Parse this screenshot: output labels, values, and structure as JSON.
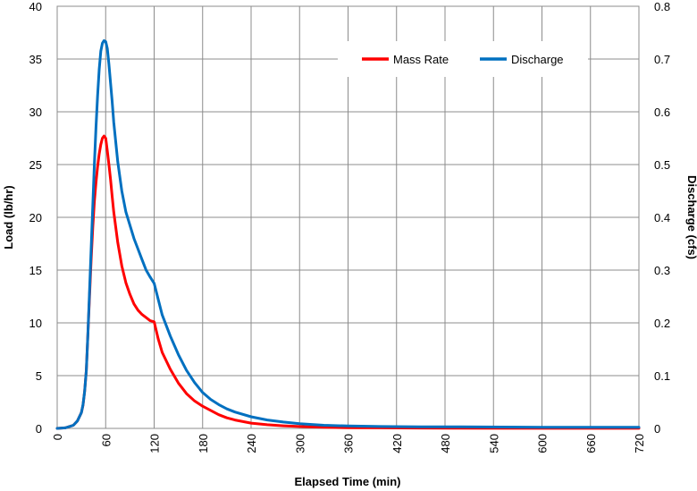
{
  "chart_data": {
    "type": "line",
    "xlabel": "Elapsed Time (min)",
    "ylabel": "Load (lb/hr)",
    "y2label": "Discharge (cfs)",
    "xlim": [
      0,
      720
    ],
    "ylim": [
      0,
      40
    ],
    "y2lim": [
      0,
      0.8
    ],
    "x_ticks": [
      "0",
      "60",
      "120",
      "180",
      "240",
      "300",
      "360",
      "420",
      "480",
      "540",
      "600",
      "660",
      "720"
    ],
    "y_ticks": [
      "0",
      "5",
      "10",
      "15",
      "20",
      "25",
      "30",
      "35",
      "40"
    ],
    "y2_ticks": [
      "0",
      "0.1",
      "0.2",
      "0.3",
      "0.4",
      "0.5",
      "0.6",
      "0.7",
      "0.8"
    ],
    "grid": true,
    "legend_position": "top-right",
    "colors": {
      "Mass Rate": "#ff0000",
      "Discharge": "#0070c0"
    },
    "series": [
      {
        "name": "Mass Rate",
        "axis": "left",
        "x": [
          0,
          10,
          20,
          25,
          30,
          32,
          34,
          36,
          38,
          40,
          42,
          44,
          46,
          48,
          50,
          52,
          54,
          56,
          58,
          60,
          62,
          64,
          66,
          68,
          70,
          75,
          80,
          85,
          90,
          95,
          100,
          105,
          110,
          115,
          120,
          125,
          130,
          140,
          150,
          160,
          170,
          180,
          190,
          200,
          210,
          220,
          240,
          260,
          280,
          300,
          330,
          360,
          400,
          450,
          500,
          600,
          720
        ],
        "y": [
          0.0,
          0.05,
          0.3,
          0.7,
          1.5,
          2.2,
          3.5,
          5.5,
          9.0,
          12.5,
          16.0,
          19.0,
          21.5,
          23.3,
          24.8,
          26.0,
          26.9,
          27.5,
          27.7,
          27.5,
          26.3,
          25.0,
          23.6,
          22.0,
          20.5,
          17.6,
          15.4,
          13.8,
          12.7,
          11.8,
          11.2,
          10.8,
          10.5,
          10.2,
          10.1,
          8.5,
          7.2,
          5.6,
          4.3,
          3.3,
          2.6,
          2.1,
          1.7,
          1.3,
          1.0,
          0.8,
          0.5,
          0.35,
          0.25,
          0.18,
          0.1,
          0.07,
          0.05,
          0.03,
          0.02,
          0.01,
          0.01
        ]
      },
      {
        "name": "Discharge",
        "axis": "right",
        "x": [
          0,
          10,
          20,
          25,
          30,
          32,
          34,
          36,
          38,
          40,
          42,
          44,
          46,
          48,
          50,
          52,
          54,
          56,
          58,
          60,
          62,
          64,
          66,
          68,
          70,
          75,
          80,
          85,
          90,
          95,
          100,
          105,
          110,
          115,
          120,
          125,
          130,
          140,
          150,
          160,
          170,
          180,
          190,
          200,
          210,
          220,
          240,
          260,
          280,
          300,
          330,
          360,
          400,
          450,
          500,
          600,
          720
        ],
        "y": [
          0.0,
          0.001,
          0.006,
          0.014,
          0.03,
          0.045,
          0.07,
          0.11,
          0.18,
          0.26,
          0.34,
          0.42,
          0.5,
          0.57,
          0.63,
          0.68,
          0.715,
          0.73,
          0.735,
          0.733,
          0.72,
          0.69,
          0.655,
          0.62,
          0.58,
          0.505,
          0.45,
          0.41,
          0.385,
          0.36,
          0.34,
          0.32,
          0.3,
          0.287,
          0.275,
          0.245,
          0.215,
          0.175,
          0.14,
          0.11,
          0.087,
          0.068,
          0.055,
          0.045,
          0.037,
          0.031,
          0.022,
          0.016,
          0.012,
          0.009,
          0.006,
          0.0045,
          0.0035,
          0.003,
          0.003,
          0.002,
          0.002
        ]
      }
    ]
  }
}
